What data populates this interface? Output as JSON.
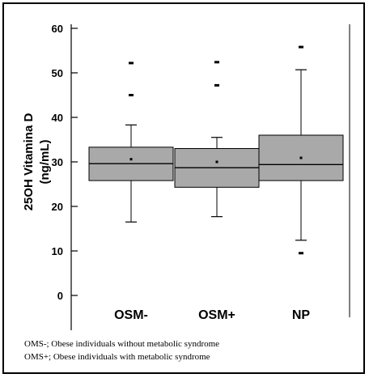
{
  "chart_data": {
    "type": "box",
    "title": "",
    "xlabel": "",
    "ylabel_line1": "25OH Vitamina D",
    "ylabel_line2": "(ng/mL)",
    "ylim": [
      0,
      60
    ],
    "yticks": [
      0,
      10,
      20,
      30,
      40,
      50,
      60
    ],
    "categories": [
      "OSM-",
      "OSM+",
      "NP"
    ],
    "boxes": [
      {
        "category": "OSM-",
        "whisker_low": 16.5,
        "q1": 25.8,
        "median": 29.6,
        "q3": 33.3,
        "whisker_high": 38.3,
        "mean": 30.6,
        "outliers": [
          45,
          52.2
        ]
      },
      {
        "category": "OSM+",
        "whisker_low": 17.7,
        "q1": 24.3,
        "median": 28.7,
        "q3": 33.0,
        "whisker_high": 35.5,
        "mean": 30.0,
        "outliers": [
          47.2,
          52.4
        ]
      },
      {
        "category": "NP",
        "whisker_low": 12.4,
        "q1": 25.8,
        "median": 29.4,
        "q3": 36.0,
        "whisker_high": 50.7,
        "mean": 30.9,
        "outliers": [
          9.5,
          55.8
        ]
      }
    ],
    "colors": {
      "box_fill": "#a9a9a9",
      "line": "#000000"
    }
  },
  "footnotes": [
    "OMS-; Obese individuals without metabolic syndrome",
    "OMS+; Obese individuals with metabolic syndrome"
  ]
}
